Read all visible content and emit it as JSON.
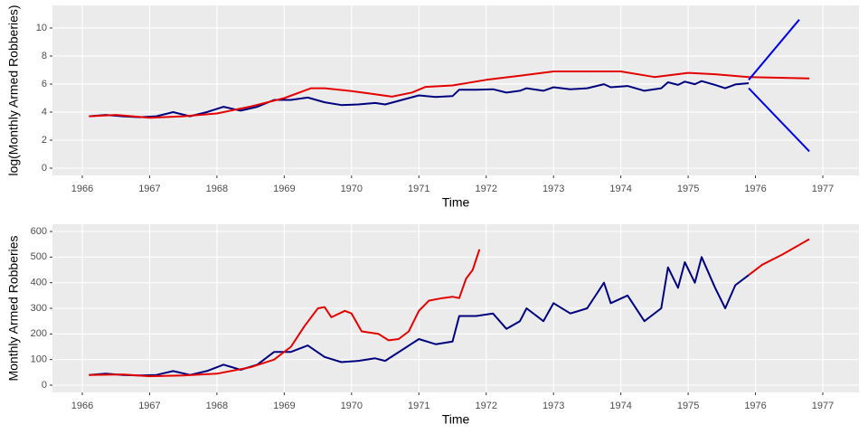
{
  "chart_data": [
    {
      "type": "line",
      "x_label": "Time",
      "y_label": "log(Monthly Armed Robberies)",
      "grid": true,
      "xlim": [
        1965.557,
        1977.537
      ],
      "ylim": [
        -0.516,
        11.61
      ],
      "xticks": [
        1966,
        1967,
        1968,
        1969,
        1970,
        1971,
        1972,
        1973,
        1974,
        1975,
        1976,
        1977
      ],
      "yticks": [
        0,
        2,
        4,
        6,
        8,
        10
      ],
      "series": [
        {
          "color": "#00007f",
          "x": [
            1966.1,
            1966.35,
            1966.6,
            1966.85,
            1967.1,
            1967.35,
            1967.6,
            1967.85,
            1968.1,
            1968.35,
            1968.6,
            1968.85,
            1969.1,
            1969.35,
            1969.6,
            1969.85,
            1970.1,
            1970.35,
            1970.5,
            1971.0,
            1971.25,
            1971.5,
            1971.6,
            1971.85,
            1972.1,
            1972.3,
            1972.5,
            1972.6,
            1972.85,
            1973.0,
            1973.25,
            1973.5,
            1973.75,
            1973.85,
            1974.1,
            1974.35,
            1974.6,
            1974.7,
            1974.85,
            1974.95,
            1975.1,
            1975.2,
            1975.4,
            1975.55,
            1975.7,
            1975.9
          ],
          "values": [
            3.7,
            3.8,
            3.7,
            3.64,
            3.7,
            4.0,
            3.7,
            4.0,
            4.38,
            4.1,
            4.38,
            4.87,
            4.87,
            5.04,
            4.7,
            4.5,
            4.55,
            4.65,
            4.55,
            5.19,
            5.08,
            5.14,
            5.6,
            5.6,
            5.63,
            5.39,
            5.52,
            5.7,
            5.52,
            5.77,
            5.63,
            5.7,
            5.99,
            5.77,
            5.86,
            5.52,
            5.7,
            6.13,
            5.94,
            6.17,
            5.99,
            6.21,
            5.94,
            5.7,
            5.97,
            6.06
          ]
        },
        {
          "color": "#e50000",
          "x": [
            1966.1,
            1966.5,
            1967.0,
            1967.5,
            1968.0,
            1968.5,
            1969.0,
            1969.4,
            1969.6,
            1970.0,
            1970.3,
            1970.6,
            1970.9,
            1971.1,
            1971.5,
            1972.0,
            1972.5,
            1973.0,
            1973.5,
            1974.0,
            1974.5,
            1975.0,
            1975.4,
            1975.9,
            1976.8
          ],
          "values": [
            3.7,
            3.8,
            3.6,
            3.7,
            3.9,
            4.4,
            5.0,
            5.7,
            5.7,
            5.5,
            5.3,
            5.1,
            5.4,
            5.8,
            5.9,
            6.3,
            6.6,
            6.9,
            6.9,
            6.9,
            6.5,
            6.8,
            6.7,
            6.5,
            6.4
          ]
        },
        {
          "color": "#0000e5",
          "x": [
            1975.9,
            1976.65
          ],
          "values": [
            6.3,
            10.6
          ]
        },
        {
          "color": "#0000e5",
          "x": [
            1975.9,
            1976.8
          ],
          "values": [
            5.7,
            1.2
          ]
        }
      ]
    },
    {
      "type": "line",
      "x_label": "Time",
      "y_label": "Monthly Armed Robberies",
      "grid": true,
      "xlim": [
        1965.557,
        1977.537
      ],
      "ylim": [
        -28.2,
        628.2
      ],
      "xticks": [
        1966,
        1967,
        1968,
        1969,
        1970,
        1971,
        1972,
        1973,
        1974,
        1975,
        1976,
        1977
      ],
      "yticks": [
        0,
        100,
        200,
        300,
        400,
        500,
        600
      ],
      "series": [
        {
          "color": "#00007f",
          "x": [
            1966.1,
            1966.35,
            1966.6,
            1966.85,
            1967.1,
            1967.35,
            1967.6,
            1967.85,
            1968.1,
            1968.35,
            1968.6,
            1968.85,
            1969.1,
            1969.35,
            1969.6,
            1969.85,
            1970.1,
            1970.35,
            1970.5,
            1971.0,
            1971.25,
            1971.5,
            1971.6,
            1971.85,
            1972.1,
            1972.3,
            1972.5,
            1972.6,
            1972.85,
            1973.0,
            1973.25,
            1973.5,
            1973.75,
            1973.85,
            1974.1,
            1974.35,
            1974.6,
            1974.7,
            1974.85,
            1974.95,
            1975.1,
            1975.2,
            1975.4,
            1975.55,
            1975.7,
            1975.9
          ],
          "values": [
            40,
            45,
            40,
            38,
            40,
            55,
            40,
            55,
            80,
            60,
            80,
            130,
            130,
            155,
            110,
            90,
            95,
            105,
            95,
            180,
            160,
            170,
            270,
            270,
            280,
            220,
            250,
            300,
            250,
            320,
            280,
            300,
            400,
            320,
            350,
            250,
            300,
            460,
            380,
            480,
            400,
            500,
            380,
            300,
            390,
            430
          ]
        },
        {
          "color": "#e50000",
          "x": [
            1966.1,
            1966.6,
            1967.0,
            1967.5,
            1968.0,
            1968.5,
            1968.85,
            1969.1,
            1969.3,
            1969.5,
            1969.6,
            1969.7,
            1969.9,
            1970.0,
            1970.15,
            1970.4,
            1970.55,
            1970.7,
            1970.85,
            1971.0,
            1971.15,
            1971.35,
            1971.5,
            1971.6,
            1971.7,
            1971.8,
            1971.9
          ],
          "values": [
            40,
            42,
            35,
            38,
            45,
            70,
            100,
            150,
            230,
            300,
            305,
            265,
            290,
            280,
            210,
            200,
            175,
            180,
            210,
            290,
            330,
            340,
            345,
            340,
            415,
            450,
            530
          ]
        },
        {
          "color": "#e50000",
          "x": [
            1975.9,
            1976.1,
            1976.4,
            1976.6,
            1976.8
          ],
          "values": [
            430,
            470,
            510,
            540,
            570
          ]
        }
      ]
    }
  ]
}
